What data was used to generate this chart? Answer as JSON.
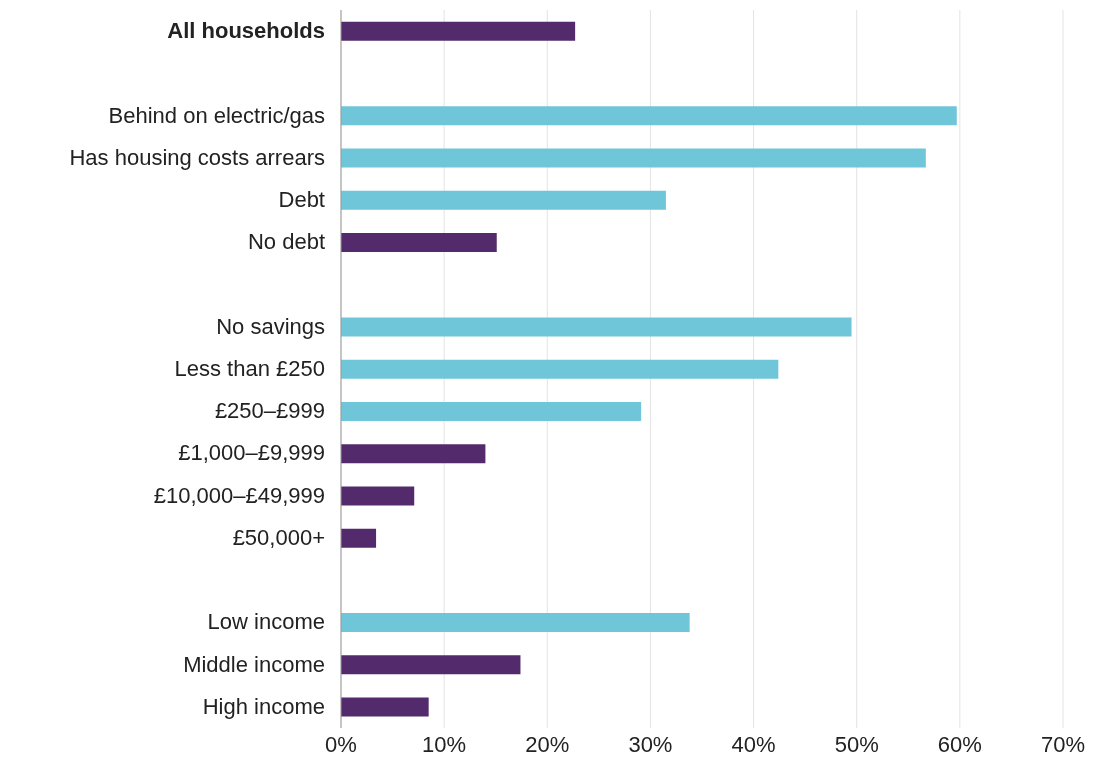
{
  "chart_data": {
    "type": "bar",
    "orientation": "horizontal",
    "categories": [
      "All households",
      null,
      "Behind on electric/gas",
      "Has housing costs arrears",
      "Debt",
      "No debt",
      null,
      "No savings",
      "Less than £250",
      "£250–£999",
      "£1,000–£9,999",
      "£10,000–£49,999",
      "£50,000+",
      null,
      "Low income",
      "Middle income",
      "High income"
    ],
    "values": [
      22.7,
      null,
      59.7,
      56.7,
      31.5,
      15.1,
      null,
      49.5,
      42.4,
      29.1,
      14.0,
      7.1,
      3.4,
      null,
      33.8,
      17.4,
      8.5
    ],
    "colors": [
      "#532a6b",
      null,
      "#6ec6d8",
      "#6ec6d8",
      "#6ec6d8",
      "#532a6b",
      null,
      "#6ec6d8",
      "#6ec6d8",
      "#6ec6d8",
      "#532a6b",
      "#532a6b",
      "#532a6b",
      null,
      "#6ec6d8",
      "#532a6b",
      "#532a6b"
    ],
    "xlim": [
      0,
      70
    ],
    "xticks": [
      {
        "value": 0,
        "label": "0%"
      },
      {
        "value": 10,
        "label": "10%"
      },
      {
        "value": 20,
        "label": "20%"
      },
      {
        "value": 30,
        "label": "30%"
      },
      {
        "value": 40,
        "label": "40%"
      },
      {
        "value": 50,
        "label": "50%"
      },
      {
        "value": 60,
        "label": "60%"
      },
      {
        "value": 70,
        "label": "70%"
      }
    ],
    "grid": "x"
  }
}
